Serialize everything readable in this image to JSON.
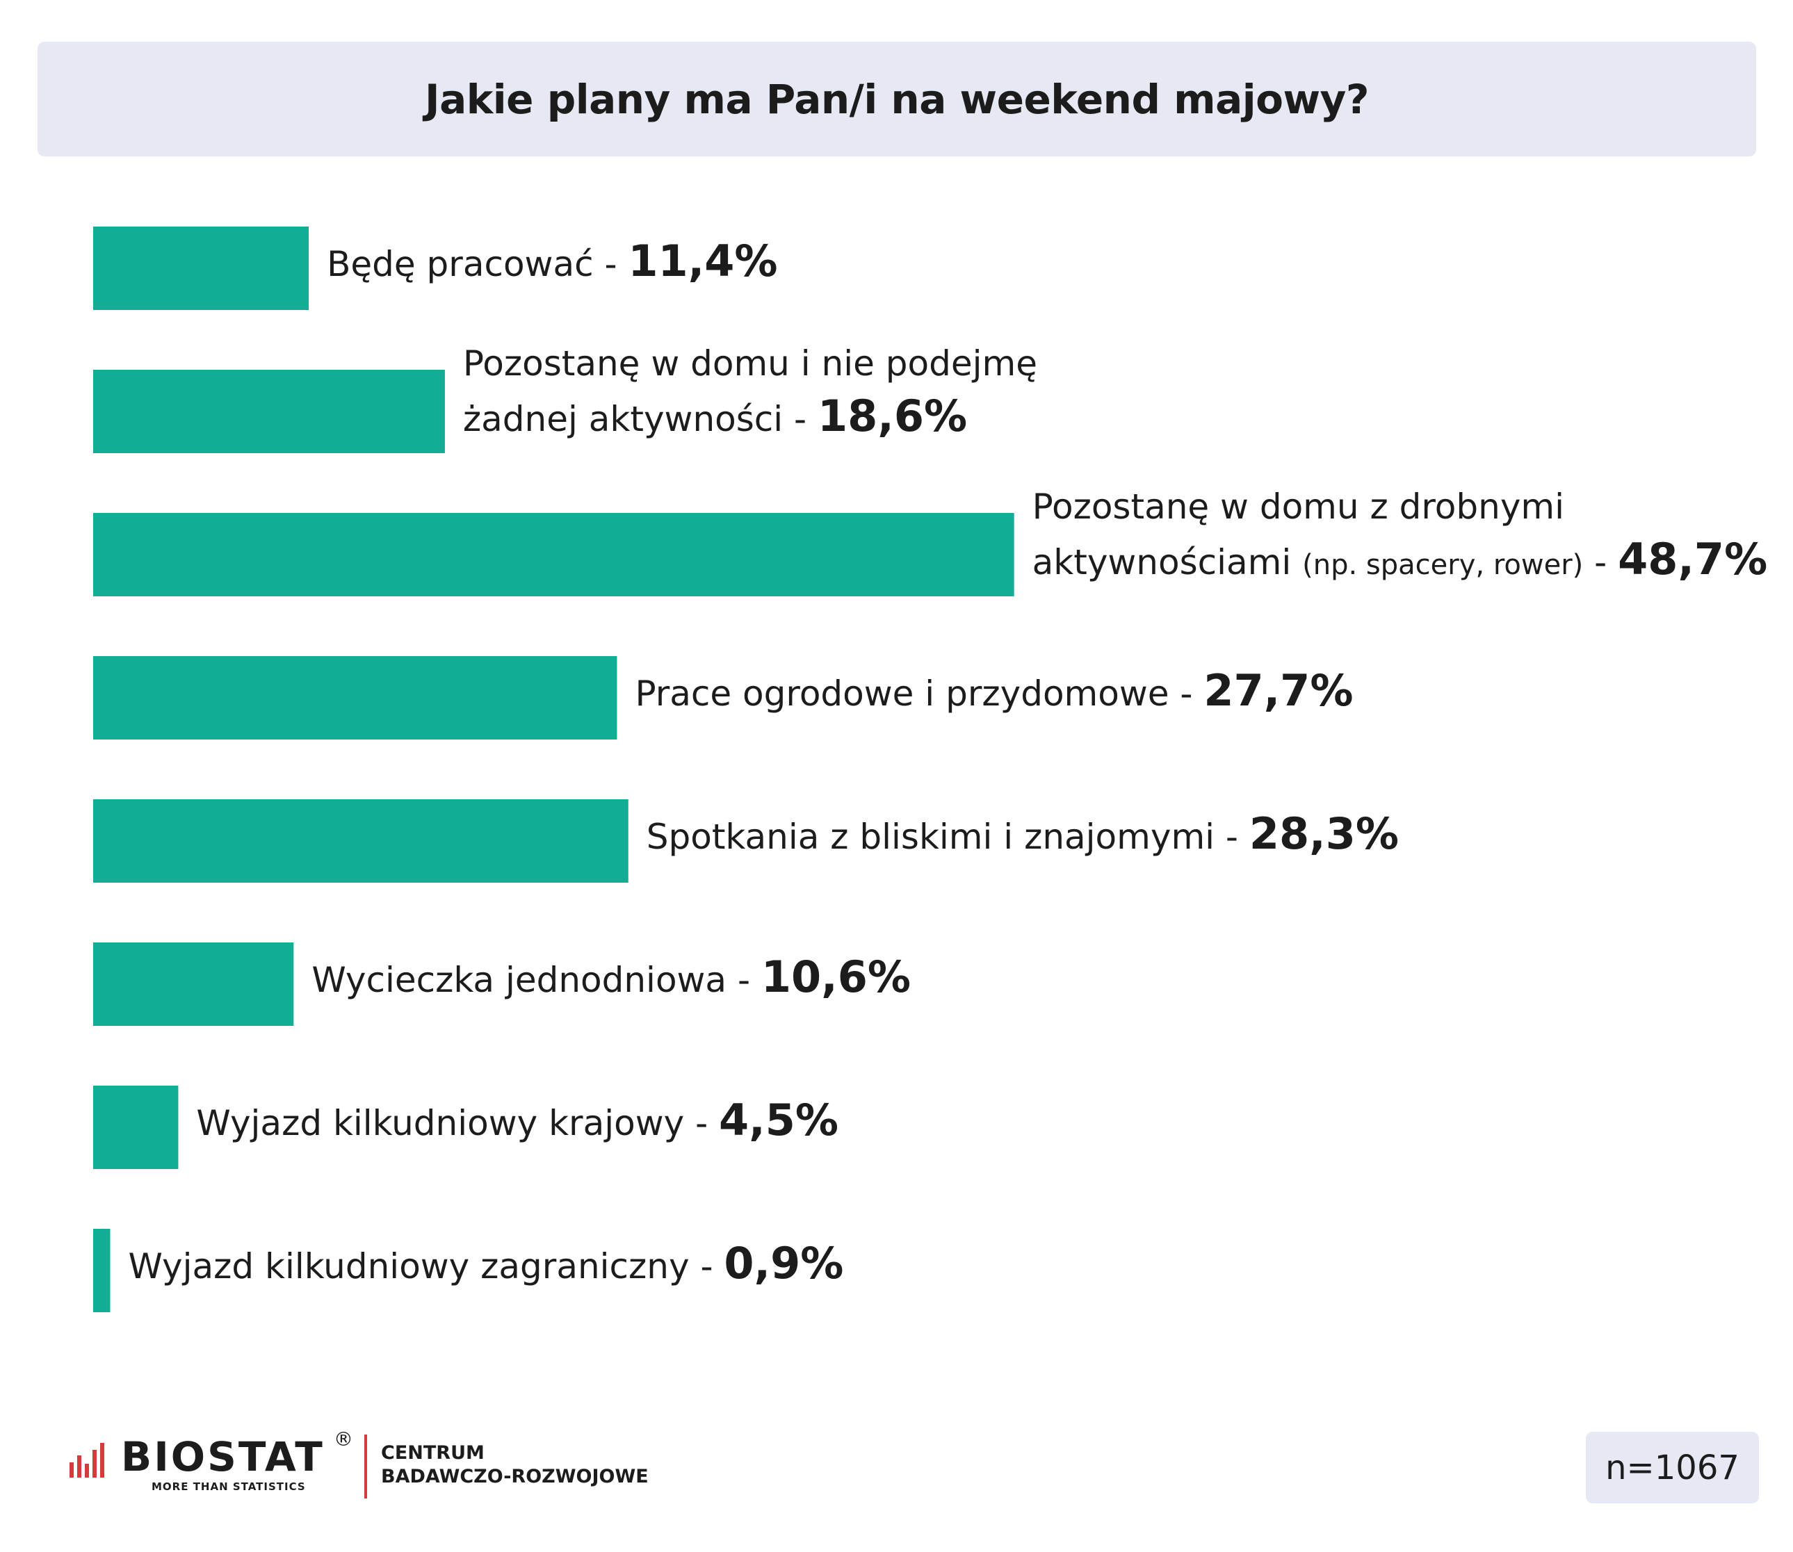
{
  "chart_data": {
    "type": "bar",
    "orientation": "horizontal",
    "title": "Jakie plany ma Pan/i na weekend majowy?",
    "categories": [
      "Będę pracować",
      "Pozostanę w domu i nie podejmę żadnej aktywności",
      "Pozostanę w domu z drobnymi aktywnościami (np. spacery, rower)",
      "Prace ogrodowe i przydomowe",
      "Spotkania z bliskimi i znajomymi",
      "Wycieczka jednodniowa",
      "Wyjazd kilkudniowy krajowy",
      "Wyjazd kilkudniowy zagraniczny"
    ],
    "values": [
      11.4,
      18.6,
      48.7,
      27.7,
      28.3,
      10.6,
      4.5,
      0.9
    ],
    "value_labels": [
      "11,4%",
      "18,6%",
      "48,7%",
      "27,7%",
      "28,3%",
      "10,6%",
      "4,5%",
      "0,9%"
    ],
    "label_parts": [
      {
        "line1": "Będę pracować - "
      },
      {
        "line1": "Pozostanę w domu i nie podejmę",
        "line2": "żadnej aktywności - "
      },
      {
        "line1": "Pozostanę w domu z drobnymi",
        "line2": "aktywnościami ",
        "note": "(np. spacery, rower)",
        "line2_tail": " - "
      },
      {
        "line1": "Prace ogrodowe i przydomowe - "
      },
      {
        "line1": "Spotkania z bliskimi i znajomymi - "
      },
      {
        "line1": "Wycieczka jednodniowa - "
      },
      {
        "line1": "Wyjazd kilkudniowy krajowy - "
      },
      {
        "line1": "Wyjazd kilkudniowy zagraniczny - "
      }
    ],
    "xlim": [
      0,
      100
    ],
    "grid": false,
    "legend": "none",
    "bar_color": "#12ad94"
  },
  "footer": {
    "logo_word": "BIOSTAT",
    "logo_reg": "®",
    "logo_tagline": "MORE THAN STATISTICS",
    "logo_centre_line1": "CENTRUM",
    "logo_centre_line2": "BADAWCZO-ROZWOJOWE",
    "sample_size": "n=1067"
  },
  "colors": {
    "bar": "#12ad94",
    "title_bg": "#e6e8f3",
    "logo_accent": "#d63b3b"
  }
}
